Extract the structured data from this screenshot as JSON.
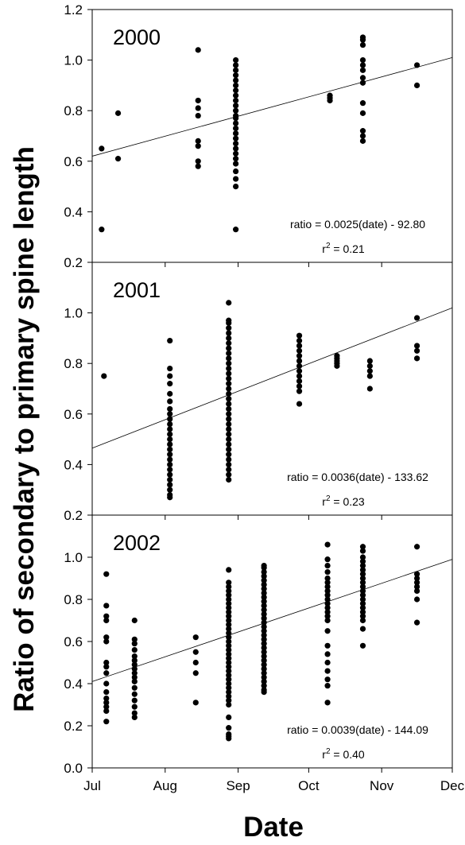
{
  "chart_data": {
    "type": "scatter",
    "xlabel": "Date",
    "ylabel": "Ratio of secondary to primary spine length",
    "x_ticks": [
      "Jul",
      "Aug",
      "Sep",
      "Oct",
      "Nov",
      "Dec"
    ],
    "x_range": [
      "Jul 1",
      "Dec 1"
    ],
    "panels": [
      {
        "year": "2000",
        "ylim": [
          0.2,
          1.2
        ],
        "y_ticks": [
          "0.2",
          "0.4",
          "0.6",
          "0.8",
          "1.0",
          "1.2"
        ],
        "equation": "ratio = 0.0025(date) - 92.80",
        "r2_prefix": "r",
        "r2_exp": "2",
        "r2_value": " = 0.21",
        "trend": {
          "x": [
            "Jul 1",
            "Dec 1"
          ],
          "y": [
            0.62,
            1.01
          ]
        },
        "points": [
          {
            "x": "Jul 5",
            "y": [
              0.65,
              0.33
            ]
          },
          {
            "x": "Jul 12",
            "y": [
              0.79,
              0.61
            ]
          },
          {
            "x": "Aug 15",
            "y": [
              1.04,
              0.84,
              0.81,
              0.78,
              0.68,
              0.66,
              0.6,
              0.58
            ]
          },
          {
            "x": "Aug 31",
            "y": [
              1.0,
              0.98,
              0.96,
              0.94,
              0.92,
              0.9,
              0.88,
              0.86,
              0.84,
              0.82,
              0.8,
              0.78,
              0.77,
              0.75,
              0.73,
              0.71,
              0.69,
              0.67,
              0.65,
              0.63,
              0.61,
              0.59,
              0.56,
              0.53,
              0.5,
              0.33
            ]
          },
          {
            "x": "Oct 10",
            "y": [
              0.86,
              0.85,
              0.84
            ]
          },
          {
            "x": "Oct 24",
            "y": [
              1.09,
              1.08,
              1.06,
              1.0,
              0.98,
              0.96,
              0.93,
              0.91,
              0.83,
              0.79,
              0.72,
              0.7,
              0.68
            ]
          },
          {
            "x": "Nov 16",
            "y": [
              0.98,
              0.9
            ]
          }
        ]
      },
      {
        "year": "2001",
        "ylim": [
          0.2,
          1.2
        ],
        "y_ticks": [
          "0.2",
          "0.4",
          "0.6",
          "0.8",
          "1.0"
        ],
        "equation": "ratio = 0.0036(date) - 133.62",
        "r2_prefix": "r",
        "r2_exp": "2",
        "r2_value": " = 0.23",
        "trend": {
          "x": [
            "Jul 1",
            "Dec 1"
          ],
          "y": [
            0.465,
            1.02
          ]
        },
        "points": [
          {
            "x": "Jul 6",
            "y": [
              0.75
            ]
          },
          {
            "x": "Aug 3",
            "y": [
              0.89,
              0.78,
              0.75,
              0.72,
              0.68,
              0.65,
              0.62,
              0.6,
              0.58,
              0.56,
              0.54,
              0.52,
              0.5,
              0.48,
              0.46,
              0.44,
              0.42,
              0.4,
              0.38,
              0.36,
              0.34,
              0.32,
              0.3,
              0.28,
              0.27
            ]
          },
          {
            "x": "Aug 28",
            "y": [
              1.04,
              0.97,
              0.96,
              0.94,
              0.92,
              0.9,
              0.88,
              0.86,
              0.84,
              0.82,
              0.8,
              0.78,
              0.76,
              0.74,
              0.72,
              0.7,
              0.68,
              0.66,
              0.64,
              0.62,
              0.6,
              0.58,
              0.56,
              0.54,
              0.52,
              0.5,
              0.48,
              0.46,
              0.44,
              0.42,
              0.4,
              0.38,
              0.36,
              0.34
            ]
          },
          {
            "x": "Sep 27",
            "y": [
              0.91,
              0.89,
              0.87,
              0.85,
              0.83,
              0.81,
              0.79,
              0.77,
              0.75,
              0.73,
              0.71,
              0.69,
              0.64
            ]
          },
          {
            "x": "Oct 13",
            "y": [
              0.83,
              0.82,
              0.81,
              0.8,
              0.79
            ]
          },
          {
            "x": "Oct 27",
            "y": [
              0.81,
              0.79,
              0.77,
              0.75,
              0.7
            ]
          },
          {
            "x": "Nov 16",
            "y": [
              0.98,
              0.87,
              0.85,
              0.82
            ]
          }
        ]
      },
      {
        "year": "2002",
        "ylim": [
          0.0,
          1.2
        ],
        "y_ticks": [
          "0.0",
          "0.2",
          "0.4",
          "0.6",
          "0.8",
          "1.0"
        ],
        "equation": "ratio = 0.0039(date) - 144.09",
        "r2_prefix": "r",
        "r2_exp": "2",
        "r2_value": " = 0.40",
        "trend": {
          "x": [
            "Jul 1",
            "Dec 1"
          ],
          "y": [
            0.41,
            0.99
          ]
        },
        "points": [
          {
            "x": "Jul 7",
            "y": [
              0.92,
              0.77,
              0.72,
              0.7,
              0.62,
              0.6,
              0.5,
              0.48,
              0.45,
              0.4,
              0.36,
              0.33,
              0.31,
              0.29,
              0.27,
              0.22
            ]
          },
          {
            "x": "Jul 19",
            "y": [
              0.7,
              0.61,
              0.59,
              0.56,
              0.53,
              0.51,
              0.49,
              0.47,
              0.45,
              0.43,
              0.41,
              0.38,
              0.35,
              0.32,
              0.29,
              0.26,
              0.24
            ]
          },
          {
            "x": "Aug 14",
            "y": [
              0.62,
              0.55,
              0.5,
              0.45,
              0.31
            ]
          },
          {
            "x": "Aug 28",
            "y": [
              0.94,
              0.88,
              0.86,
              0.84,
              0.82,
              0.8,
              0.78,
              0.76,
              0.74,
              0.72,
              0.7,
              0.68,
              0.66,
              0.64,
              0.62,
              0.6,
              0.58,
              0.56,
              0.54,
              0.52,
              0.5,
              0.48,
              0.46,
              0.44,
              0.42,
              0.4,
              0.38,
              0.36,
              0.34,
              0.32,
              0.3,
              0.24,
              0.19,
              0.16,
              0.15,
              0.14
            ]
          },
          {
            "x": "Sep 12",
            "y": [
              0.96,
              0.95,
              0.93,
              0.91,
              0.89,
              0.87,
              0.85,
              0.83,
              0.81,
              0.79,
              0.77,
              0.75,
              0.73,
              0.71,
              0.69,
              0.67,
              0.65,
              0.63,
              0.61,
              0.59,
              0.57,
              0.55,
              0.53,
              0.51,
              0.49,
              0.47,
              0.45,
              0.43,
              0.41,
              0.39,
              0.37,
              0.36
            ]
          },
          {
            "x": "Oct 9",
            "y": [
              1.06,
              0.99,
              0.96,
              0.93,
              0.9,
              0.88,
              0.86,
              0.84,
              0.82,
              0.8,
              0.78,
              0.76,
              0.74,
              0.72,
              0.7,
              0.65,
              0.58,
              0.54,
              0.5,
              0.46,
              0.42,
              0.39,
              0.31
            ]
          },
          {
            "x": "Oct 24",
            "y": [
              1.05,
              1.03,
              1.0,
              0.98,
              0.96,
              0.94,
              0.92,
              0.9,
              0.88,
              0.86,
              0.84,
              0.82,
              0.8,
              0.78,
              0.76,
              0.74,
              0.72,
              0.7,
              0.66,
              0.58
            ]
          },
          {
            "x": "Nov 16",
            "y": [
              1.05,
              0.92,
              0.9,
              0.88,
              0.86,
              0.84,
              0.8,
              0.69
            ]
          }
        ]
      }
    ]
  }
}
